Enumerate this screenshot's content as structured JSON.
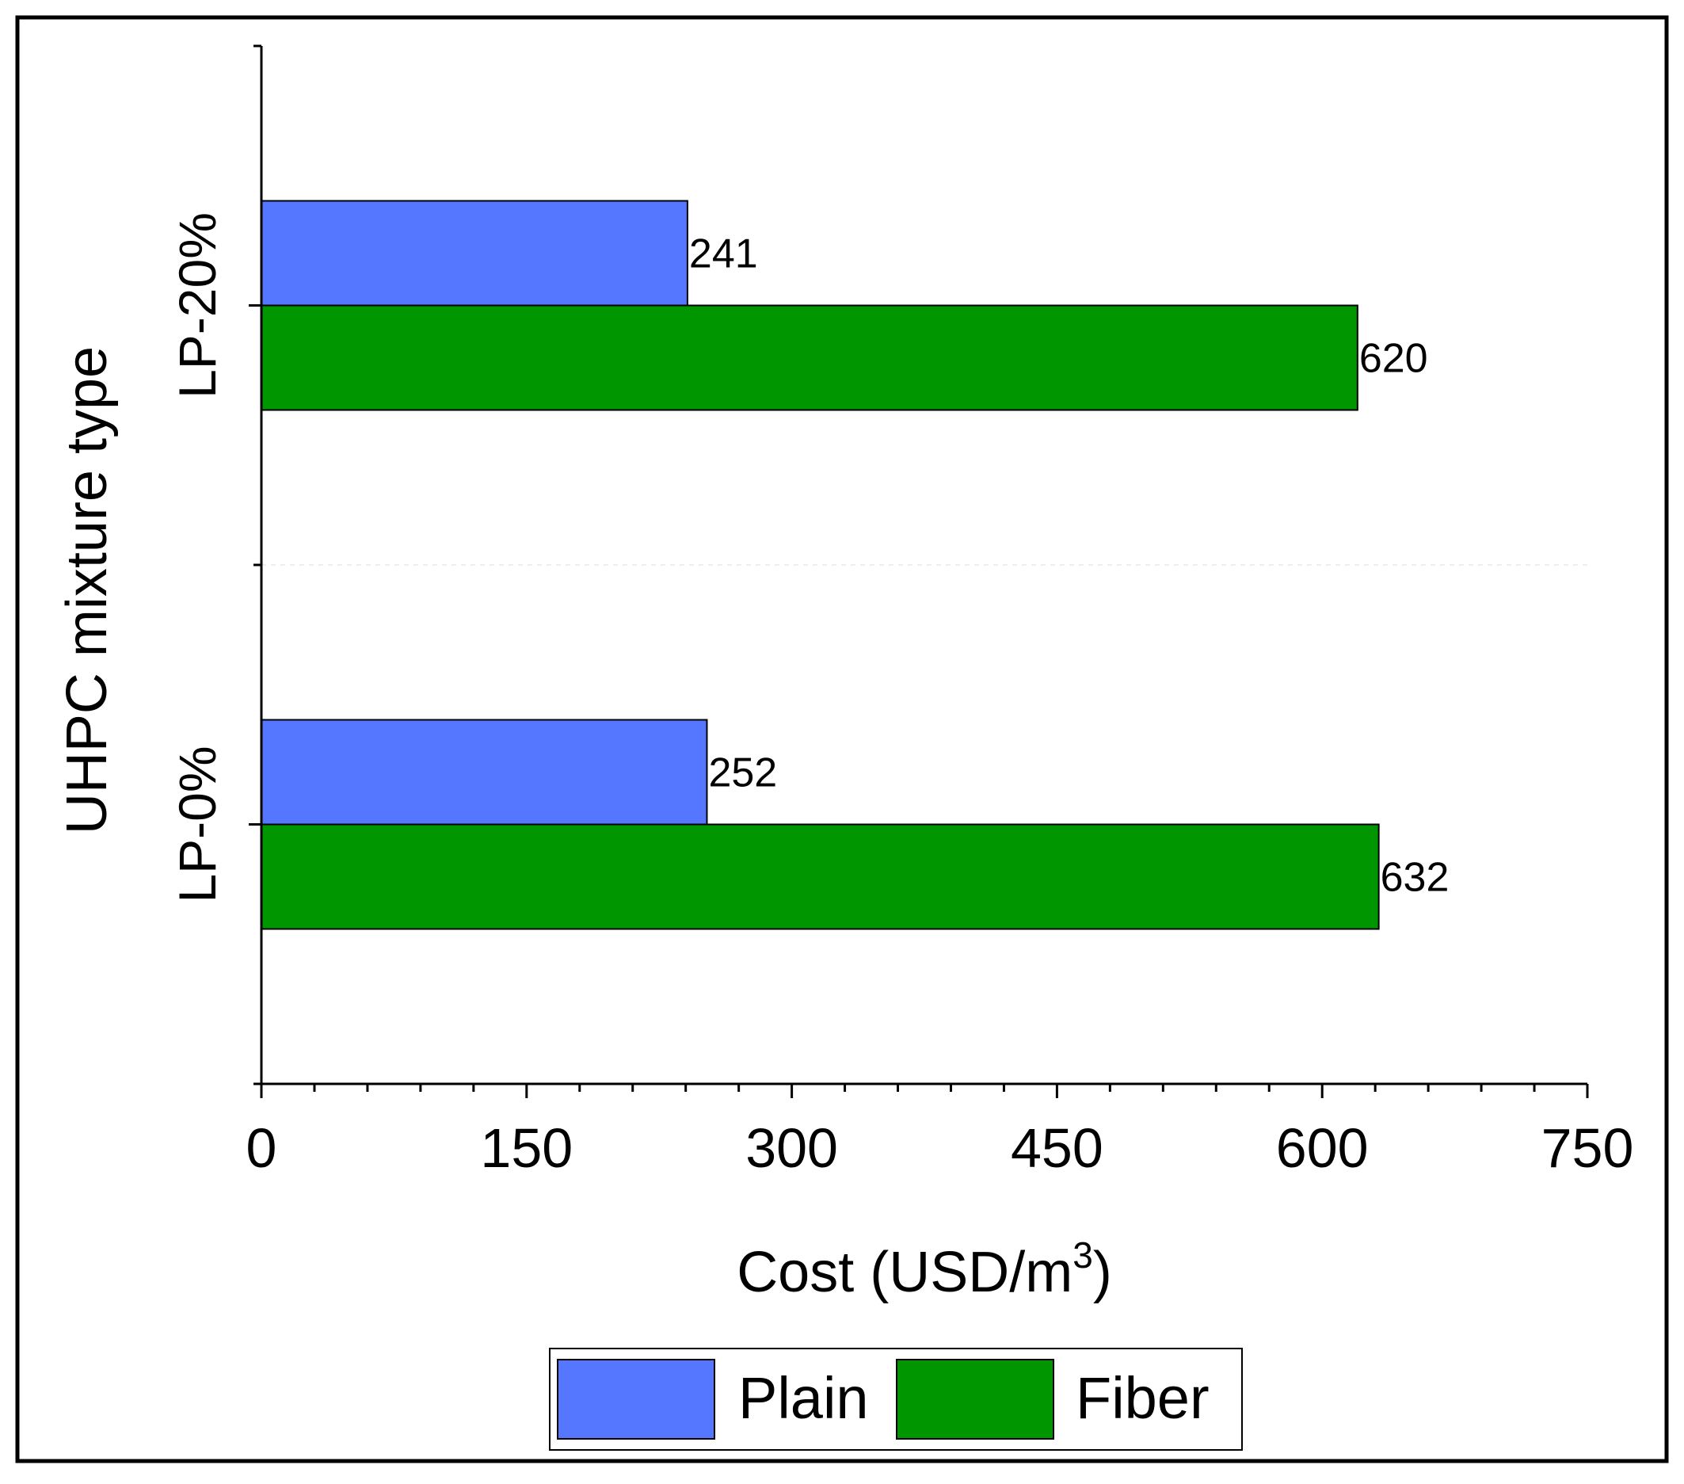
{
  "chart_data": {
    "type": "bar",
    "orientation": "horizontal",
    "title": "",
    "xlabel": "Cost (USD/m",
    "xlabel_superscript": "3",
    "xlabel_suffix": ")",
    "ylabel": "UHPC mixture type",
    "xlim": [
      0,
      750
    ],
    "xticks": [
      "0",
      "150",
      "300",
      "450",
      "600",
      "750"
    ],
    "categories": [
      "LP-20%",
      "LP-0%"
    ],
    "series": [
      {
        "name": "Plain",
        "color": "#5577ff",
        "values": [
          241,
          252
        ]
      },
      {
        "name": "Fiber",
        "color": "#009600",
        "values": [
          620,
          632
        ]
      }
    ],
    "data_labels": true,
    "grid": false,
    "legend_position": "bottom"
  }
}
